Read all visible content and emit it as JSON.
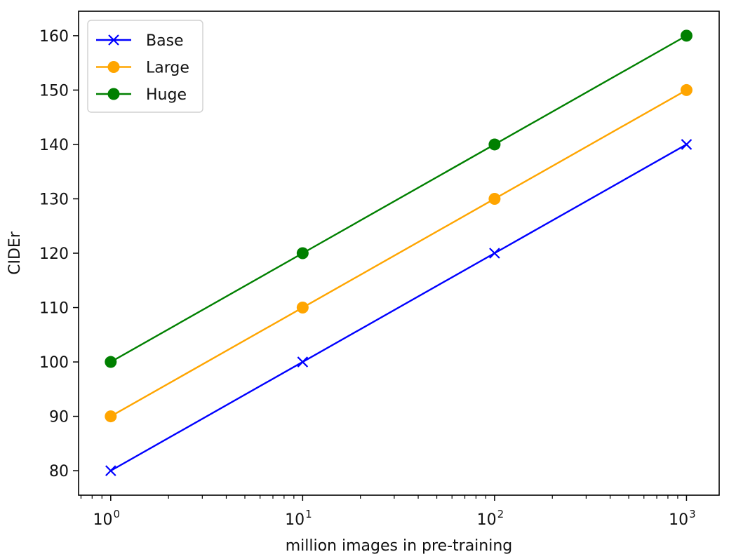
{
  "chart_data": {
    "type": "line",
    "x": [
      1,
      10,
      100,
      1000
    ],
    "xscale": "log",
    "xticks": [
      {
        "value": 1,
        "base": "10",
        "exp": "0"
      },
      {
        "value": 10,
        "base": "10",
        "exp": "1"
      },
      {
        "value": 100,
        "base": "10",
        "exp": "2"
      },
      {
        "value": 1000,
        "base": "10",
        "exp": "3"
      }
    ],
    "yticks": [
      80,
      90,
      100,
      110,
      120,
      130,
      140,
      150,
      160
    ],
    "xlim": [
      0.68,
      1480
    ],
    "ylim": [
      75.5,
      164.5
    ],
    "xlabel": "million images in pre-training",
    "ylabel": "CIDEr",
    "title": "",
    "grid": false,
    "legend_position": "top-left",
    "series": [
      {
        "name": "Base",
        "values": [
          80,
          100,
          120,
          140
        ],
        "color": "#0000ff",
        "marker": "x"
      },
      {
        "name": "Large",
        "values": [
          90,
          110,
          130,
          150
        ],
        "color": "#ffa500",
        "marker": "circle"
      },
      {
        "name": "Huge",
        "values": [
          100,
          120,
          140,
          160
        ],
        "color": "#008000",
        "marker": "circle"
      }
    ]
  }
}
